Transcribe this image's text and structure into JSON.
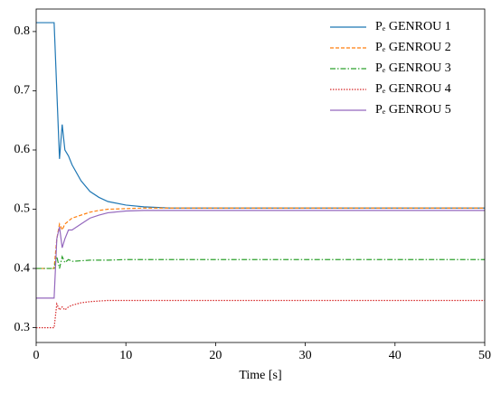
{
  "chart_data": {
    "type": "line",
    "xlabel": "Time [s]",
    "x": [
      0,
      2,
      2.3,
      2.6,
      2.9,
      3.2,
      3.6,
      4,
      5,
      6,
      7,
      8,
      10,
      12,
      15,
      20,
      30,
      40,
      50
    ],
    "series": [
      {
        "name": "Pₑ GENROU 1",
        "color": "#1f77b4",
        "linestyle": "solid",
        "values": [
          0.815,
          0.815,
          0.7,
          0.585,
          0.643,
          0.6,
          0.59,
          0.575,
          0.548,
          0.53,
          0.52,
          0.513,
          0.507,
          0.504,
          0.502,
          0.502,
          0.502,
          0.502,
          0.502
        ]
      },
      {
        "name": "Pₑ GENROU 2",
        "color": "#ff7f0e",
        "linestyle": "dashed",
        "values": [
          0.4,
          0.4,
          0.45,
          0.475,
          0.465,
          0.475,
          0.48,
          0.485,
          0.49,
          0.495,
          0.498,
          0.5,
          0.501,
          0.502,
          0.502,
          0.502,
          0.502,
          0.502,
          0.502
        ]
      },
      {
        "name": "Pₑ GENROU 3",
        "color": "#2ca02c",
        "linestyle": "dashdot",
        "values": [
          0.4,
          0.4,
          0.42,
          0.4,
          0.42,
          0.41,
          0.415,
          0.412,
          0.413,
          0.414,
          0.414,
          0.414,
          0.415,
          0.415,
          0.415,
          0.415,
          0.415,
          0.415,
          0.415
        ]
      },
      {
        "name": "Pₑ GENROU 4",
        "color": "#d62728",
        "linestyle": "dotted",
        "values": [
          0.3,
          0.3,
          0.34,
          0.33,
          0.335,
          0.33,
          0.335,
          0.338,
          0.342,
          0.344,
          0.345,
          0.346,
          0.346,
          0.346,
          0.346,
          0.346,
          0.346,
          0.346,
          0.346
        ]
      },
      {
        "name": "Pₑ GENROU 5",
        "color": "#9467bd",
        "linestyle": "solid",
        "values": [
          0.35,
          0.35,
          0.45,
          0.47,
          0.435,
          0.45,
          0.465,
          0.465,
          0.475,
          0.485,
          0.49,
          0.494,
          0.497,
          0.498,
          0.498,
          0.498,
          0.498,
          0.498,
          0.498
        ]
      }
    ],
    "xlim": [
      0,
      50
    ],
    "xticks": [
      0,
      10,
      20,
      30,
      40,
      50
    ],
    "ylim": [
      0.275,
      0.838
    ],
    "yticks": [
      0.3,
      0.4,
      0.5,
      0.6,
      0.7,
      0.8
    ],
    "legend": "upper right"
  }
}
